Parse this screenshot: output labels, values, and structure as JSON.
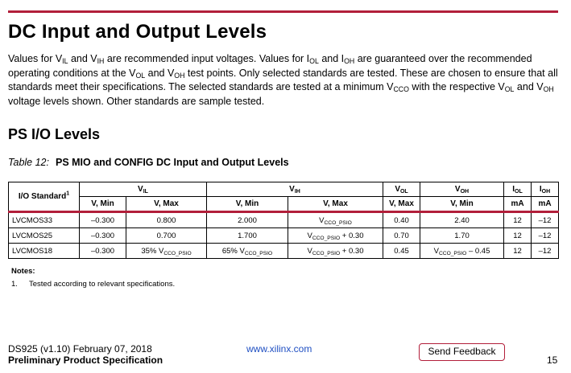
{
  "heading": "DC Input and Output Levels",
  "intro": [
    {
      "t": "Values for V"
    },
    {
      "s": "IL"
    },
    {
      "t": " and V"
    },
    {
      "s": "IH"
    },
    {
      "t": " are recommended input voltages. Values for I"
    },
    {
      "s": "OL"
    },
    {
      "t": " and I"
    },
    {
      "s": "OH"
    },
    {
      "t": " are guaranteed over the recommended operating conditions at the V"
    },
    {
      "s": "OL"
    },
    {
      "t": " and V"
    },
    {
      "s": "OH"
    },
    {
      "t": " test points. Only selected standards are tested. These are chosen to ensure that all standards meet their specifications. The selected standards are tested at a minimum V"
    },
    {
      "s": "CCO"
    },
    {
      "t": " with the respective V"
    },
    {
      "s": "OL"
    },
    {
      "t": " and V"
    },
    {
      "s": "OH"
    },
    {
      "t": " voltage levels shown. Other standards are sample tested."
    }
  ],
  "subheading": "PS I/O Levels",
  "caption": {
    "num": "Table 12:",
    "title": "PS MIO and CONFIG DC Input and Output Levels"
  },
  "table": {
    "std_header": "I/O Standard",
    "std_note": "1",
    "groups": [
      {
        "sym": "V",
        "sub": "IL"
      },
      {
        "sym": "V",
        "sub": "IH"
      },
      {
        "sym": "V",
        "sub": "OL"
      },
      {
        "sym": "V",
        "sub": "OH"
      },
      {
        "sym": "I",
        "sub": "OL"
      },
      {
        "sym": "I",
        "sub": "OH"
      }
    ],
    "subheaders": [
      "V, Min",
      "V, Max",
      "V, Min",
      "V, Max",
      "V, Max",
      "V, Min",
      "mA",
      "mA"
    ],
    "rows": [
      {
        "std": "LVCMOS33",
        "vil_min": "–0.300",
        "vil_max": "0.800",
        "vih_min": "2.000",
        "vih_max": [
          {
            "t": "V"
          },
          {
            "s": "CCO_PSIO"
          }
        ],
        "vol_max": "0.40",
        "voh_min": "2.40",
        "iol": "12",
        "ioh": "–12"
      },
      {
        "std": "LVCMOS25",
        "vil_min": "–0.300",
        "vil_max": "0.700",
        "vih_min": "1.700",
        "vih_max": [
          {
            "t": "V"
          },
          {
            "s": "CCO_PSIO"
          },
          {
            "t": " + 0.30"
          }
        ],
        "vol_max": "0.70",
        "voh_min": "1.70",
        "iol": "12",
        "ioh": "–12"
      },
      {
        "std": "LVCMOS18",
        "vil_min": "–0.300",
        "vil_max": [
          {
            "t": "35% V"
          },
          {
            "s": "CCO_PSIO"
          }
        ],
        "vih_min": [
          {
            "t": "65% V"
          },
          {
            "s": "CCO_PSIO"
          }
        ],
        "vih_max": [
          {
            "t": "V"
          },
          {
            "s": "CCO_PSIO"
          },
          {
            "t": " + 0.30"
          }
        ],
        "vol_max": "0.45",
        "voh_min": [
          {
            "t": "V"
          },
          {
            "s": "CCO_PSIO"
          },
          {
            "t": "  – 0.45"
          }
        ],
        "iol": "12",
        "ioh": "–12"
      }
    ]
  },
  "notes_label": "Notes:",
  "note_num": "1.",
  "note_text": "Tested according to relevant specifications.",
  "footer": {
    "doc": "DS925 (v1.10) February 07, 2018",
    "spec": "Preliminary Product Specification",
    "link": "www.xilinx.com",
    "feedback": "Send Feedback",
    "page": "15"
  },
  "colors": {
    "accent": "#b21e3a",
    "link": "#1f4fc2"
  }
}
